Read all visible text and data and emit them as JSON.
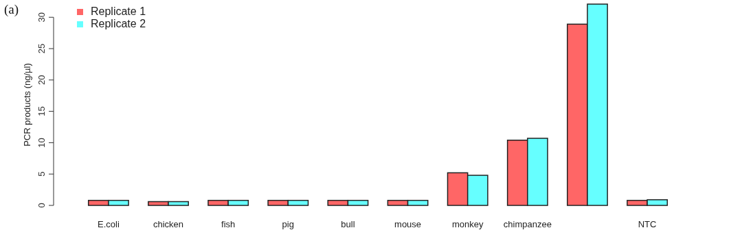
{
  "chart_data": {
    "type": "bar",
    "ylabel": "PCR products (ng/µl)",
    "annotations": [
      "(a)"
    ],
    "categories": [
      "E.coli",
      "chicken",
      "fish",
      "pig",
      "bull",
      "mouse",
      "monkey",
      "chimpanzee",
      null,
      "NTC"
    ],
    "series": [
      {
        "name": "Replicate 1",
        "color": "#ff6666",
        "values": [
          0.8,
          0.6,
          0.8,
          0.8,
          0.8,
          0.8,
          5.2,
          10.4,
          28.9,
          0.8
        ]
      },
      {
        "name": "Replicate 2",
        "color": "#66ffff",
        "values": [
          0.8,
          0.6,
          0.8,
          0.8,
          0.8,
          0.8,
          4.8,
          10.7,
          32.1,
          0.9
        ]
      }
    ],
    "ylim": [
      0,
      32.1
    ],
    "yticks": [
      0,
      5,
      10,
      15,
      20,
      25,
      30
    ],
    "legend": "top left",
    "grid": false
  }
}
